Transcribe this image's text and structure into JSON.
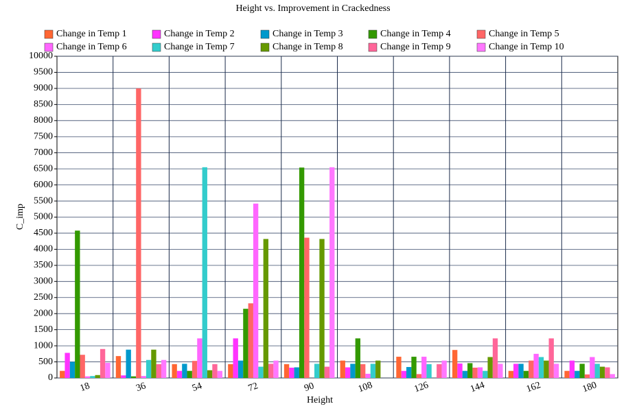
{
  "chart_data": {
    "type": "bar",
    "title": "Height vs. Improvement in Crackedness",
    "x_label": "Height",
    "y_label": "C_imp",
    "categories": [
      "18",
      "36",
      "54",
      "72",
      "90",
      "108",
      "126",
      "144",
      "162",
      "180"
    ],
    "series": [
      {
        "name": "Change in Temp 1",
        "color": "#ff6633",
        "values": [
          220,
          680,
          430,
          430,
          430,
          540,
          660,
          870,
          220,
          220
        ]
      },
      {
        "name": "Change in Temp 2",
        "color": "#ff33ff",
        "values": [
          780,
          80,
          220,
          1230,
          320,
          330,
          220,
          450,
          440,
          540
        ]
      },
      {
        "name": "Change in Temp 3",
        "color": "#0099cc",
        "values": [
          500,
          880,
          440,
          540,
          330,
          440,
          340,
          220,
          440,
          220
        ]
      },
      {
        "name": "Change in Temp 4",
        "color": "#339900",
        "values": [
          4580,
          50,
          220,
          2150,
          6540,
          1230,
          660,
          460,
          220,
          440
        ]
      },
      {
        "name": "Change in Temp 5",
        "color": "#ff6666",
        "values": [
          720,
          9000,
          530,
          2320,
          4360,
          430,
          120,
          320,
          540,
          110
        ]
      },
      {
        "name": "Change in Temp 6",
        "color": "#ff66ff",
        "values": [
          50,
          60,
          1230,
          5420,
          0,
          130,
          660,
          330,
          750,
          650
        ]
      },
      {
        "name": "Change in Temp 7",
        "color": "#33cccc",
        "values": [
          60,
          560,
          6550,
          350,
          440,
          440,
          430,
          220,
          650,
          440
        ]
      },
      {
        "name": "Change in Temp 8",
        "color": "#669900",
        "values": [
          90,
          880,
          240,
          4320,
          4320,
          540,
          0,
          650,
          540,
          350
        ]
      },
      {
        "name": "Change in Temp 9",
        "color": "#ff6699",
        "values": [
          900,
          430,
          430,
          440,
          350,
          0,
          430,
          1230,
          1230,
          330
        ]
      },
      {
        "name": "Change in Temp 10",
        "color": "#ff77ff",
        "values": [
          470,
          560,
          220,
          540,
          6550,
          0,
          540,
          440,
          440,
          120
        ]
      }
    ],
    "ylim": [
      0,
      10000
    ],
    "yticks": [
      0,
      500,
      1000,
      1500,
      2000,
      2500,
      3000,
      3500,
      4000,
      4500,
      5000,
      5500,
      6000,
      6500,
      7000,
      7500,
      8000,
      8500,
      9000,
      9500,
      10000
    ],
    "grid": true
  }
}
